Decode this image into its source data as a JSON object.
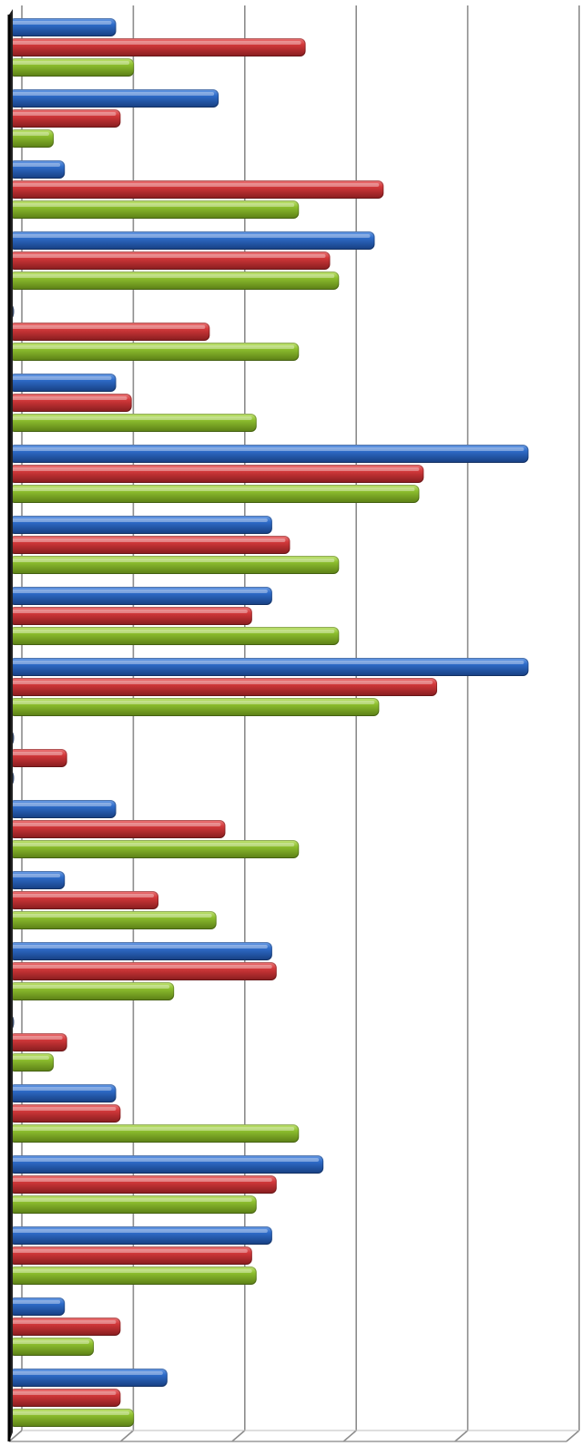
{
  "chart_data": {
    "type": "bar",
    "orientation": "horizontal",
    "style": "3d-cylinder",
    "grid": true,
    "legend": "none",
    "xlim": [
      0,
      25
    ],
    "x_gridline_step": 5,
    "category_count": 20,
    "series": [
      {
        "color": "#2E6BC8",
        "values": [
          4.8,
          9.4,
          2.5,
          16.4,
          0,
          4.8,
          23.3,
          11.8,
          11.8,
          23.3,
          0,
          4.8,
          2.5,
          11.8,
          0,
          4.8,
          14.1,
          11.8,
          2.5,
          7.1
        ]
      },
      {
        "color": "#D2383A",
        "values": [
          13.3,
          5.0,
          16.8,
          14.4,
          9.0,
          5.5,
          18.6,
          12.6,
          10.9,
          19.2,
          2.6,
          9.7,
          6.7,
          12.0,
          2.6,
          5.0,
          12.0,
          10.9,
          5.0,
          5.0
        ]
      },
      {
        "color": "#8DBF2E",
        "values": [
          5.6,
          2.0,
          13.0,
          14.8,
          13.0,
          11.1,
          18.4,
          14.8,
          14.8,
          16.6,
          0,
          13.0,
          9.3,
          7.4,
          2.0,
          13.0,
          11.1,
          11.1,
          3.8,
          5.6
        ]
      }
    ]
  }
}
